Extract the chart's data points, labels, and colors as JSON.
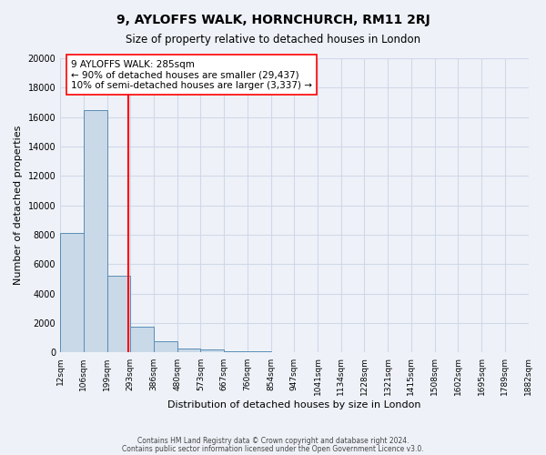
{
  "title": "9, AYLOFFS WALK, HORNCHURCH, RM11 2RJ",
  "subtitle": "Size of property relative to detached houses in London",
  "xlabel": "Distribution of detached houses by size in London",
  "ylabel": "Number of detached properties",
  "bin_labels": [
    "12sqm",
    "106sqm",
    "199sqm",
    "293sqm",
    "386sqm",
    "480sqm",
    "573sqm",
    "667sqm",
    "760sqm",
    "854sqm",
    "947sqm",
    "1041sqm",
    "1134sqm",
    "1228sqm",
    "1321sqm",
    "1415sqm",
    "1508sqm",
    "1602sqm",
    "1695sqm",
    "1789sqm",
    "1882sqm"
  ],
  "bar_heights": [
    8100,
    16500,
    5200,
    1750,
    750,
    280,
    200,
    110,
    100,
    0,
    0,
    0,
    0,
    0,
    0,
    0,
    0,
    0,
    0,
    0
  ],
  "bar_color": "#c9d9e8",
  "bar_edge_color": "#5a8db5",
  "grid_color": "#d0d8e8",
  "background_color": "#eef2f8",
  "property_size_sqm": 285,
  "bin_values": [
    12,
    106,
    199,
    293,
    386,
    480,
    573,
    667,
    760,
    854,
    947,
    1041,
    1134,
    1228,
    1321,
    1415,
    1508,
    1602,
    1695,
    1789,
    1882
  ],
  "annotation_title": "9 AYLOFFS WALK: 285sqm",
  "annotation_line1": "← 90% of detached houses are smaller (29,437)",
  "annotation_line2": "10% of semi-detached houses are larger (3,337) →",
  "ylim": [
    0,
    20000
  ],
  "yticks": [
    0,
    2000,
    4000,
    6000,
    8000,
    10000,
    12000,
    14000,
    16000,
    18000,
    20000
  ],
  "footer_line1": "Contains HM Land Registry data © Crown copyright and database right 2024.",
  "footer_line2": "Contains public sector information licensed under the Open Government Licence v3.0."
}
